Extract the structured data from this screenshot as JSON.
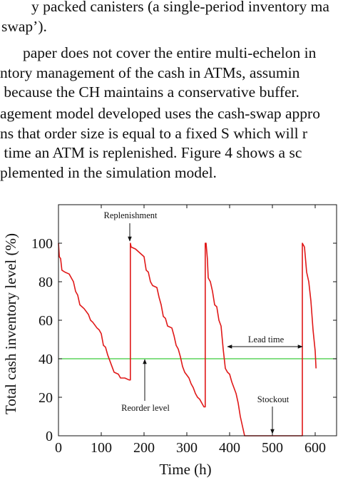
{
  "text": {
    "lines": [
      "y packed canisters (a single-period inventory ma",
      "swap’).",
      "paper does not cover the entire multi-echelon in",
      "ntory management of the cash in ATMs, assumin",
      " because the CH maintains a conservative buffer.",
      "agement model developed uses the cash-swap appro",
      "ns that order size is equal to a fixed S which will r",
      " time an ATM is replenished. Figure 4 shows a sc",
      "plemented in the simulation model."
    ]
  },
  "chart_data": {
    "type": "line",
    "xlabel": "Time (h)",
    "ylabel": "Total cash inventory level (%)",
    "xlim": [
      0,
      650
    ],
    "ylim": [
      0,
      120
    ],
    "xticks": [
      0,
      100,
      200,
      300,
      400,
      500,
      600
    ],
    "yticks": [
      0,
      20,
      40,
      60,
      80,
      100
    ],
    "x": [
      0,
      2,
      5,
      8,
      15,
      25,
      30,
      35,
      40,
      45,
      50,
      60,
      70,
      75,
      80,
      90,
      95,
      100,
      105,
      110,
      115,
      120,
      125,
      130,
      140,
      145,
      155,
      165,
      168,
      168,
      170,
      180,
      190,
      200,
      205,
      210,
      215,
      220,
      230,
      235,
      240,
      245,
      250,
      255,
      265,
      270,
      275,
      280,
      285,
      290,
      295,
      305,
      310,
      315,
      320,
      325,
      330,
      335,
      340,
      343,
      343,
      345,
      348,
      350,
      355,
      360,
      365,
      370,
      375,
      380,
      385,
      390,
      395,
      400,
      405,
      410,
      415,
      420,
      425,
      430,
      433,
      435,
      570,
      570,
      575,
      580,
      585,
      590,
      595,
      600,
      602
    ],
    "series": [
      {
        "color": "#e01818",
        "values": [
          100,
          93,
          92,
          86,
          85,
          84,
          82,
          80,
          75,
          73,
          68,
          66,
          63,
          60,
          59,
          56,
          55,
          53,
          47,
          46,
          42,
          39,
          36,
          33,
          32,
          30,
          30,
          29,
          29,
          100,
          98,
          97,
          95,
          93,
          86,
          85,
          80,
          78,
          77,
          72,
          68,
          62,
          61,
          57,
          56,
          52,
          47,
          45,
          41,
          36,
          33,
          30,
          27,
          25,
          22,
          20,
          19,
          17,
          15,
          15,
          100,
          100,
          92,
          82,
          80,
          75,
          68,
          67,
          60,
          57,
          45,
          35,
          33,
          32,
          28,
          25,
          22,
          17,
          10,
          5,
          2,
          0,
          0,
          100,
          98,
          85,
          80,
          70,
          55,
          44,
          35
        ]
      }
    ],
    "reference_lines": [
      {
        "label": "Reorder level",
        "value": 40,
        "color": "#3ccc3c"
      }
    ],
    "annotations": [
      "Replenishment",
      "Lead time",
      "Stockout"
    ]
  }
}
